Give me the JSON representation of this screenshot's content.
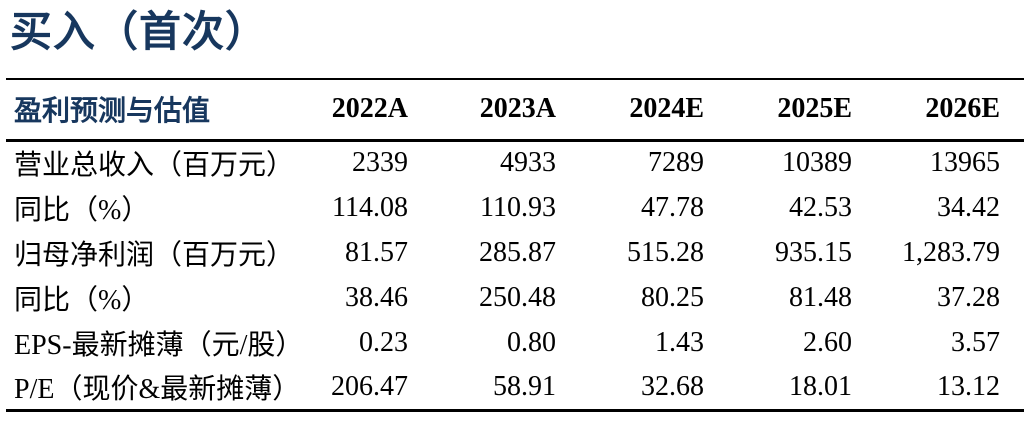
{
  "page": {
    "title": "买入（首次）"
  },
  "colors": {
    "accent_blue": "#17375E",
    "text_black": "#000000",
    "rule_black": "#000000",
    "background": "#ffffff"
  },
  "table": {
    "header": {
      "label": "盈利预测与估值",
      "columns": [
        "2022A",
        "2023A",
        "2024E",
        "2025E",
        "2026E"
      ]
    },
    "rows": [
      {
        "label": "营业总收入（百万元）",
        "values": [
          "2339",
          "4933",
          "7289",
          "10389",
          "13965"
        ]
      },
      {
        "label": "同比（%）",
        "values": [
          "114.08",
          "110.93",
          "47.78",
          "42.53",
          "34.42"
        ]
      },
      {
        "label": "归母净利润（百万元）",
        "values": [
          "81.57",
          "285.87",
          "515.28",
          "935.15",
          "1,283.79"
        ]
      },
      {
        "label": "同比（%）",
        "values": [
          "38.46",
          "250.48",
          "80.25",
          "81.48",
          "37.28"
        ]
      },
      {
        "label": "EPS-最新摊薄（元/股）",
        "values": [
          "0.23",
          "0.80",
          "1.43",
          "2.60",
          "3.57"
        ]
      },
      {
        "label": "P/E（现价&最新摊薄）",
        "values": [
          "206.47",
          "58.91",
          "32.68",
          "18.01",
          "13.12"
        ]
      }
    ]
  }
}
